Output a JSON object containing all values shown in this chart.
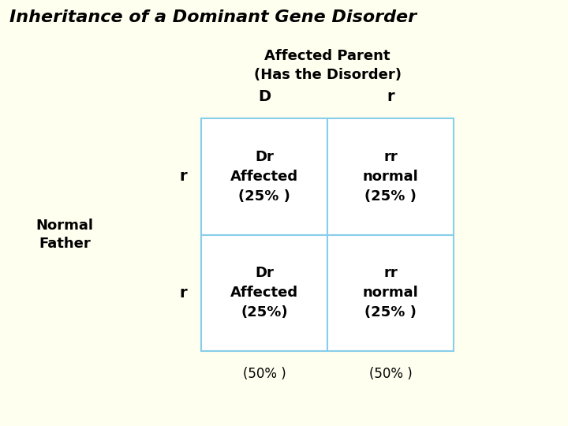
{
  "title": "Inheritance of a Dominant Gene Disorder",
  "background_color": "#FFFFF0",
  "affected_parent_label": "Affected Parent\n(Has the Disorder)",
  "normal_father_label": "Normal\nFather",
  "col_headers": [
    "D",
    "r"
  ],
  "row_headers": [
    "r",
    "r"
  ],
  "cells": [
    [
      "Dr\nAffected\n(25% )",
      "rr\nnormal\n(25% )"
    ],
    [
      "Dr\nAffected\n(25%)",
      "rr\nnormal\n(25% )"
    ]
  ],
  "col_totals": [
    "(50% )",
    "(50% )"
  ],
  "grid_color": "#87CEEB",
  "cell_bg_color": "#FFFFFF",
  "text_color": "#000000",
  "title_color": "#000000",
  "cell_fontsize": 13,
  "header_fontsize": 14,
  "title_fontsize": 16,
  "label_fontsize": 13,
  "total_fontsize": 12
}
